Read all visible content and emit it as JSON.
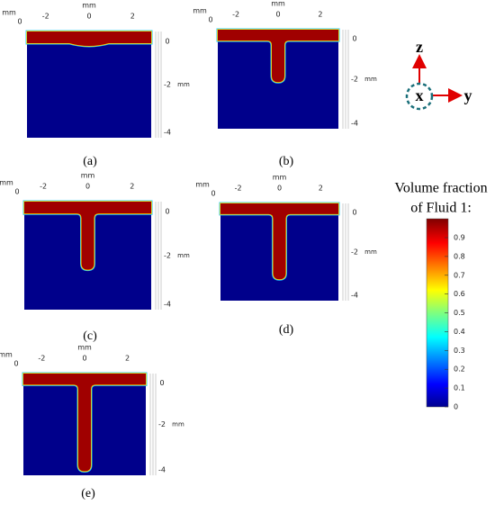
{
  "panels": [
    {
      "label": "(a)",
      "top_unit": "mm",
      "corner_unit": "mm",
      "corner_zero": "0",
      "x_ticks": [
        "-2",
        "0",
        "2"
      ],
      "z_ticks": [
        "0",
        "-2",
        "-4"
      ],
      "z_unit": "mm"
    },
    {
      "label": "(b)",
      "top_unit": "mm",
      "corner_unit": "mm",
      "corner_zero": "0",
      "x_ticks": [
        "-2",
        "0",
        "2"
      ],
      "z_ticks": [
        "0",
        "-2",
        "-4"
      ],
      "z_unit": "mm"
    },
    {
      "label": "(c)",
      "top_unit": "mm",
      "corner_unit": "mm",
      "corner_zero": "0",
      "x_ticks": [
        "-2",
        "0",
        "2"
      ],
      "z_ticks": [
        "0",
        "-2",
        "-4"
      ],
      "z_unit": "mm"
    },
    {
      "label": "(d)",
      "top_unit": "mm",
      "corner_unit": "mm",
      "corner_zero": "0",
      "x_ticks": [
        "-2",
        "0",
        "2"
      ],
      "z_ticks": [
        "0",
        "-2",
        "-4"
      ],
      "z_unit": "mm"
    },
    {
      "label": "(e)",
      "top_unit": "mm",
      "corner_unit": "mm",
      "corner_zero": "0",
      "x_ticks": [
        "-2",
        "0",
        "2"
      ],
      "z_ticks": [
        "0",
        "-2",
        "-4"
      ],
      "z_unit": "mm"
    }
  ],
  "colorbar": {
    "title": [
      "Volume fraction",
      "of Fluid 1:"
    ],
    "ticks": [
      "0.9",
      "0.8",
      "0.7",
      "0.6",
      "0.5",
      "0.4",
      "0.3",
      "0.2",
      "0.1",
      "0"
    ]
  },
  "axes": {
    "z": "z",
    "x": "x",
    "y": "y"
  }
}
